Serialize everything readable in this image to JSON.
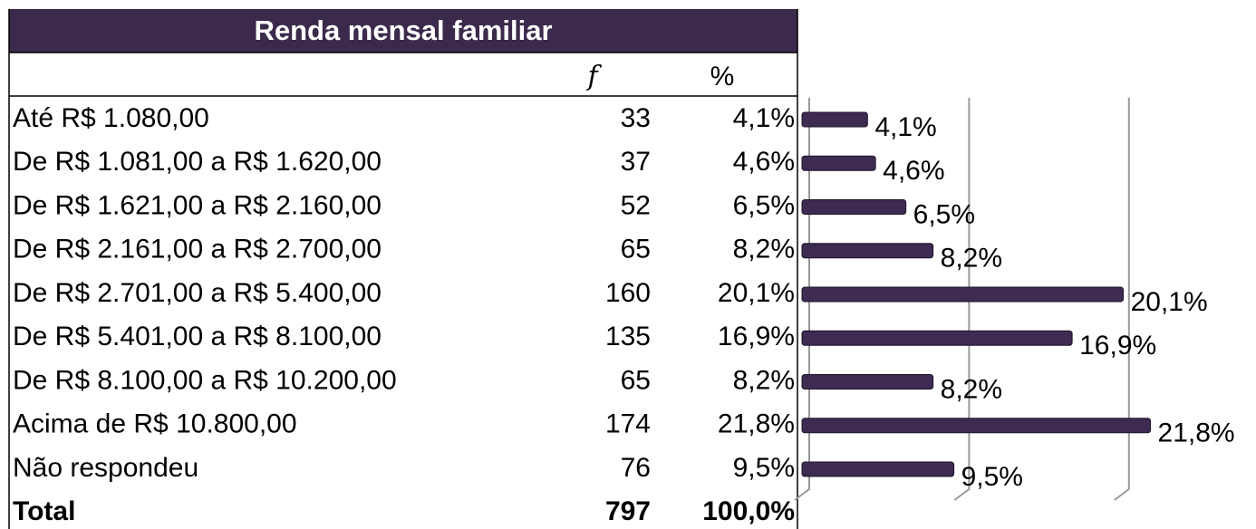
{
  "table": {
    "title": "Renda mensal familiar",
    "columns": [
      "f",
      "%"
    ],
    "rows": [
      [
        "Até R$ 1.080,00",
        33,
        "4,1%"
      ],
      [
        "De R$ 1.081,00 a R$ 1.620,00",
        37,
        "4,6%"
      ],
      [
        "De R$ 1.621,00 a R$ 2.160,00",
        52,
        "6,5%"
      ],
      [
        "De R$ 2.161,00 a R$ 2.700,00",
        65,
        "8,2%"
      ],
      [
        "De R$ 2.701,00 a R$ 5.400,00",
        160,
        "20,1%"
      ],
      [
        "De R$ 5.401,00 a R$ 8.100,00",
        135,
        "16,9%"
      ],
      [
        "De R$ 8.100,00 a R$ 10.200,00",
        65,
        "8,2%"
      ],
      [
        "Acima de R$ 10.800,00",
        174,
        "21,8%"
      ],
      [
        "Não respondeu",
        76,
        "9,5%"
      ]
    ],
    "total": [
      "Total",
      797,
      "100,0%"
    ]
  },
  "chart_data": {
    "type": "bar",
    "orientation": "horizontal",
    "values": [
      4.1,
      4.6,
      6.5,
      8.2,
      20.1,
      16.9,
      8.2,
      21.8,
      9.5
    ],
    "value_labels": [
      "4,1%",
      "4,6%",
      "6,5%",
      "8,2%",
      "20,1%",
      "16,9%",
      "8,2%",
      "21,8%",
      "9,5%"
    ],
    "color": "#3d2b52",
    "xlim": [
      0,
      25
    ],
    "xticks": [
      0,
      10,
      20
    ],
    "grid": true
  }
}
